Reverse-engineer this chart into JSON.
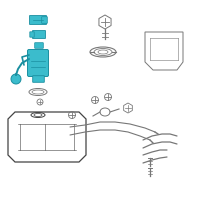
{
  "background_color": "#ffffff",
  "teal_color": "#3bbccc",
  "dark_teal": "#1a8fa0",
  "gray_color": "#777777",
  "line_color": "#444444",
  "figsize": [
    2.0,
    2.0
  ],
  "dpi": 100
}
